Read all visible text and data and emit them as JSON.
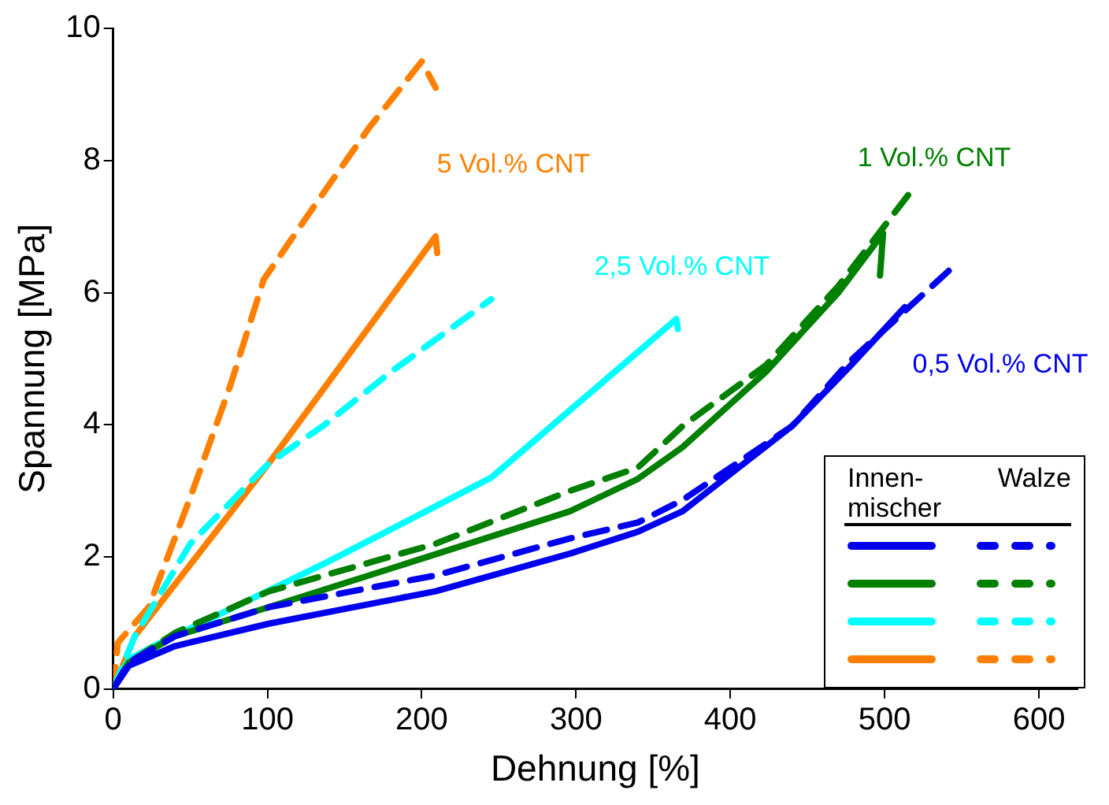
{
  "chart_data": {
    "type": "line",
    "xlabel": "Dehnung [%]",
    "ylabel": "Spannung [MPa]",
    "xlim": [
      0,
      625
    ],
    "xticks": [
      0,
      100,
      200,
      300,
      400,
      500,
      600
    ],
    "ylim": [
      0,
      10
    ],
    "yticks": [
      0,
      2,
      4,
      6,
      8,
      10
    ],
    "grid": false,
    "series": [
      {
        "color": "#0000ee",
        "line_style": "solid",
        "x": [
          0,
          10,
          40,
          101,
          209,
          296,
          340,
          369,
          440,
          477,
          513
        ],
        "values": [
          0,
          0.35,
          0.65,
          0.99,
          1.48,
          2.05,
          2.38,
          2.69,
          3.98,
          4.87,
          5.78
        ]
      },
      {
        "color": "#0000ee",
        "line_style": "dashed",
        "x": [
          0,
          10,
          40,
          101,
          209,
          296,
          340,
          369,
          440,
          477,
          542
        ],
        "values": [
          0,
          0.4,
          0.8,
          1.24,
          1.72,
          2.28,
          2.52,
          2.86,
          3.98,
          4.95,
          6.34
        ]
      },
      {
        "color": "#008000",
        "line_style": "solid",
        "x": [
          0,
          10,
          40,
          101,
          209,
          296,
          340,
          369,
          423,
          470,
          499,
          497
        ],
        "values": [
          0,
          0.4,
          0.8,
          1.24,
          2.04,
          2.69,
          3.18,
          3.66,
          4.8,
          6.0,
          6.9,
          6.26
        ]
      },
      {
        "color": "#008000",
        "line_style": "dashed",
        "x": [
          0,
          10,
          40,
          101,
          209,
          296,
          340,
          369,
          423,
          470,
          516
        ],
        "values": [
          0,
          0.4,
          0.85,
          1.48,
          2.2,
          3.0,
          3.35,
          3.98,
          4.9,
          6.1,
          7.5
        ]
      },
      {
        "color": "#00ffff",
        "line_style": "solid",
        "x": [
          0,
          10,
          28,
          137,
          245,
          340,
          365,
          366
        ],
        "values": [
          0,
          0.45,
          0.67,
          1.9,
          3.2,
          5.1,
          5.6,
          5.45
        ]
      },
      {
        "color": "#00ffff",
        "line_style": "dashed",
        "x": [
          0,
          14,
          50,
          101,
          137,
          180,
          245
        ],
        "values": [
          0,
          0.8,
          2.2,
          3.42,
          4.0,
          4.8,
          5.9
        ]
      },
      {
        "color": "#ff8000",
        "line_style": "solid",
        "x": [
          0,
          14,
          101,
          209,
          210
        ],
        "values": [
          0,
          0.8,
          3.42,
          6.85,
          6.6
        ]
      },
      {
        "color": "#ff8000",
        "line_style": "dashed",
        "x": [
          0,
          3,
          23,
          50,
          76,
          97.6,
          130,
          166,
          200,
          209
        ],
        "values": [
          0,
          0.7,
          1.24,
          2.9,
          4.6,
          6.2,
          7.3,
          8.5,
          9.5,
          9.1
        ]
      }
    ],
    "annotations": [
      "0,5 Vol.% CNT",
      "1 Vol.% CNT",
      "2,5 Vol.% CNT",
      "5 Vol.% CNT",
      "Innen-\nmischer",
      "Walze"
    ]
  }
}
